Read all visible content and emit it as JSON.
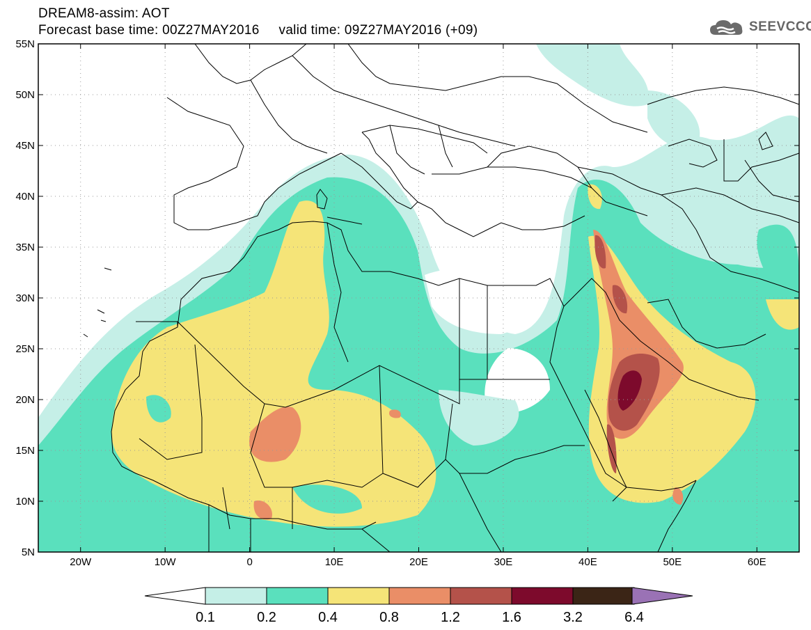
{
  "title": {
    "line1": "DREAM8-assim: AOT",
    "line2": "Forecast base time: 00Z27MAY2016     valid time: 09Z27MAY2016 (+09)"
  },
  "logo": {
    "text": "SEEVCCC",
    "icon": "cloud-icon"
  },
  "map": {
    "lon_range": [
      -25,
      65
    ],
    "lat_range": [
      5,
      55
    ],
    "lat_ticks": [
      {
        "value": 55,
        "label": "55N"
      },
      {
        "value": 50,
        "label": "50N"
      },
      {
        "value": 45,
        "label": "45N"
      },
      {
        "value": 40,
        "label": "40N"
      },
      {
        "value": 35,
        "label": "35N"
      },
      {
        "value": 30,
        "label": "30N"
      },
      {
        "value": 25,
        "label": "25N"
      },
      {
        "value": 20,
        "label": "20N"
      },
      {
        "value": 15,
        "label": "15N"
      },
      {
        "value": 10,
        "label": "10N"
      },
      {
        "value": 5,
        "label": "5N"
      }
    ],
    "lon_ticks": [
      {
        "value": -20,
        "label": "20W"
      },
      {
        "value": -10,
        "label": "10W"
      },
      {
        "value": 0,
        "label": "0"
      },
      {
        "value": 10,
        "label": "10E"
      },
      {
        "value": 20,
        "label": "20E"
      },
      {
        "value": 30,
        "label": "30E"
      },
      {
        "value": 40,
        "label": "40E"
      },
      {
        "value": 50,
        "label": "50E"
      },
      {
        "value": 60,
        "label": "60E"
      }
    ],
    "grid": true
  },
  "colorbar": {
    "labels": [
      "0.1",
      "0.2",
      "0.4",
      "0.8",
      "1.2",
      "1.6",
      "3.2",
      "6.4"
    ],
    "colors": [
      "#ffffff",
      "#c5efe7",
      "#5ae0bd",
      "#f5e478",
      "#ea8e67",
      "#b4524a",
      "#7d0a2c",
      "#3b2516",
      "#9a72b5"
    ]
  }
}
